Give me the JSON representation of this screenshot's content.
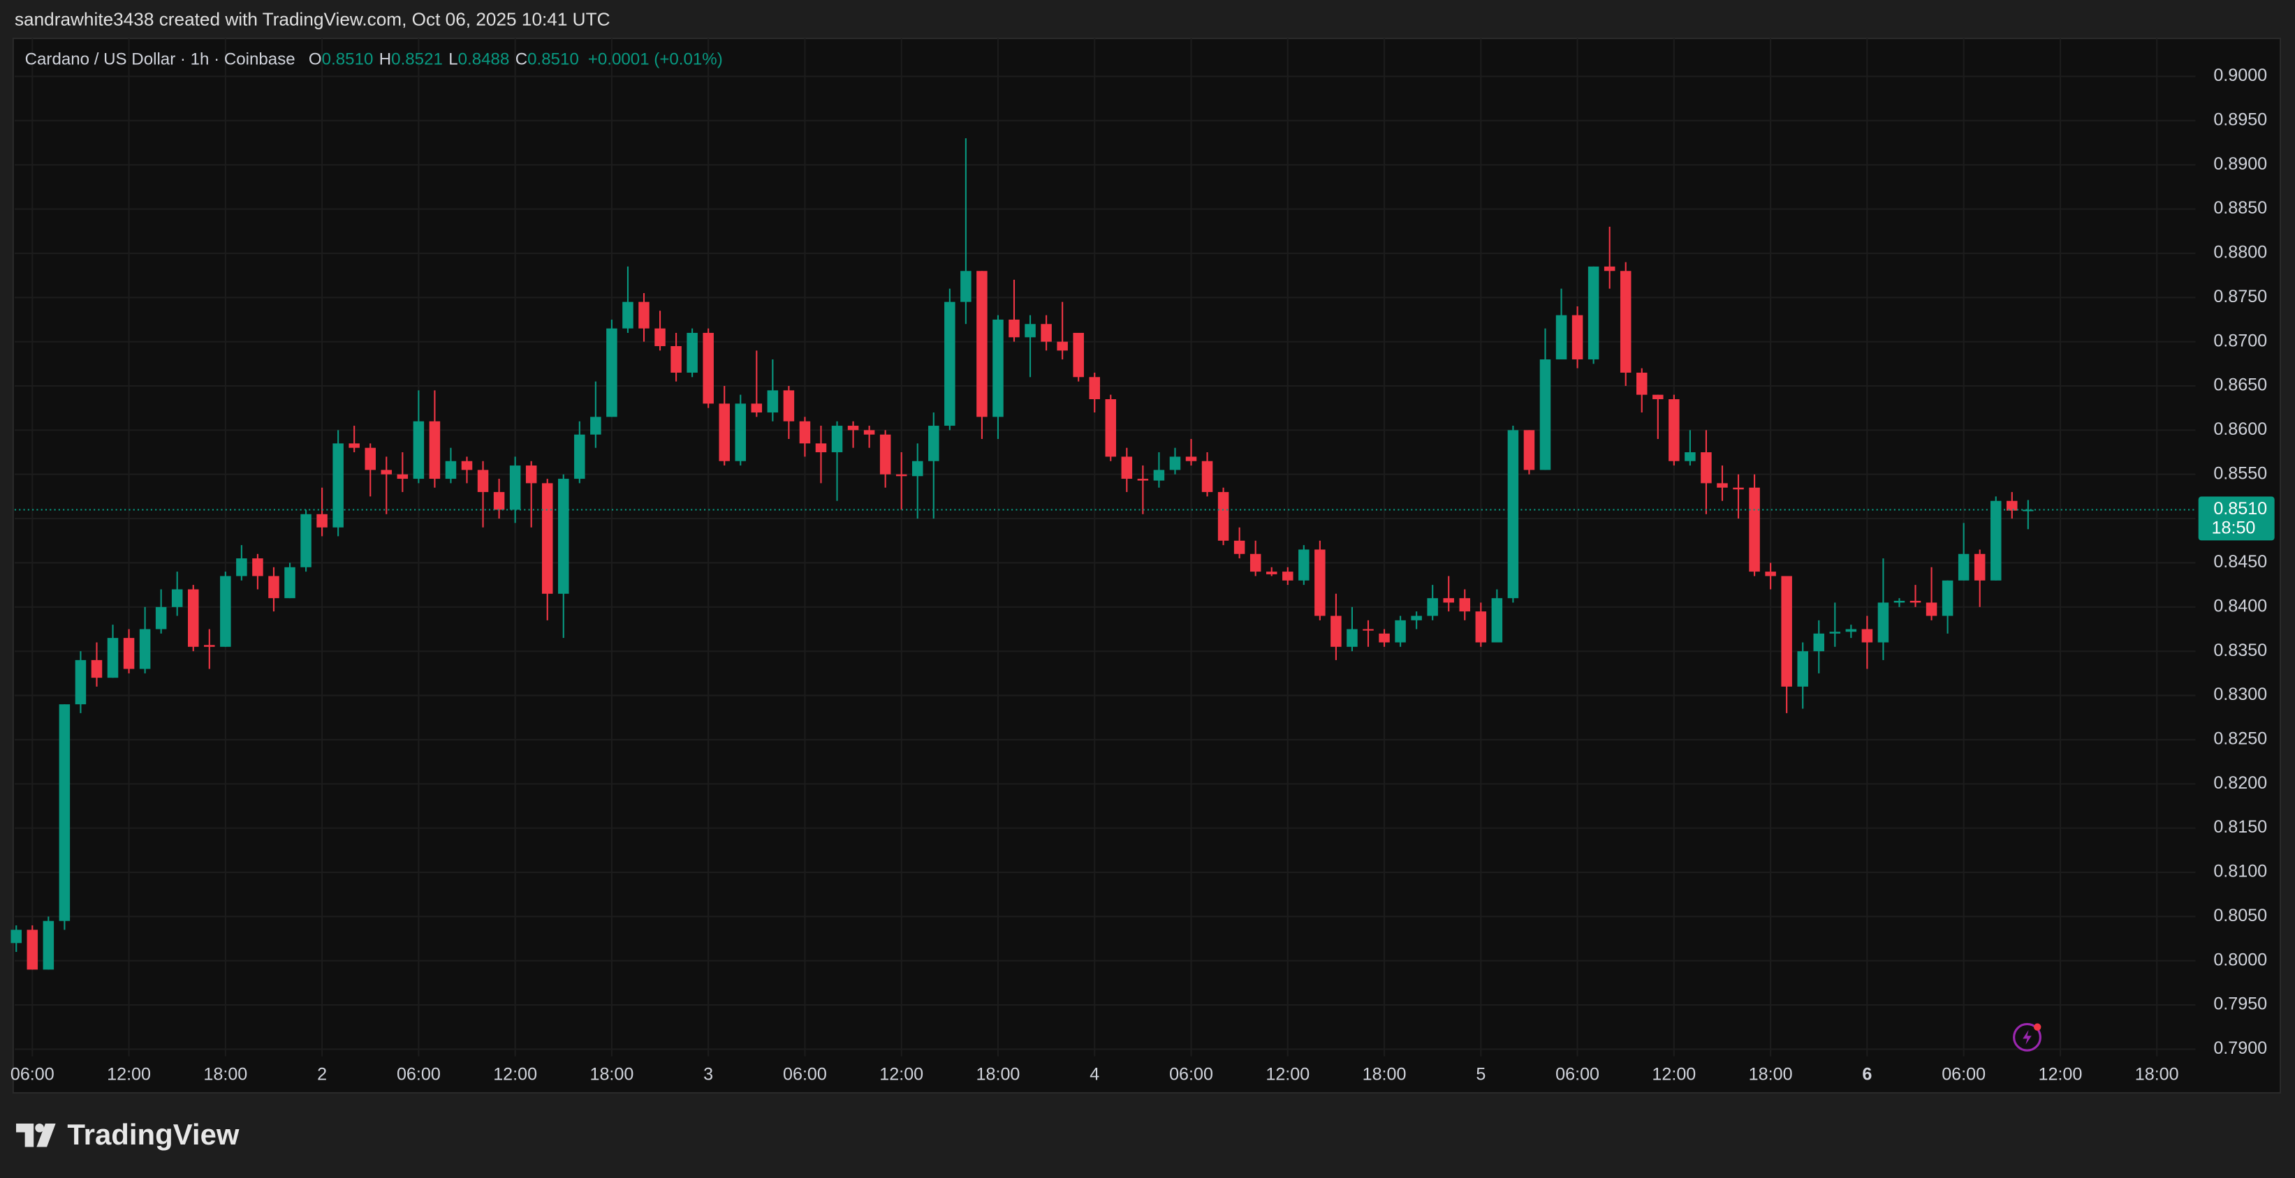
{
  "chart_data": {
    "type": "candlestick",
    "attribution": "sandrawhite3438 created with TradingView.com, Oct 06, 2025 10:41 UTC",
    "symbol": "Cardano / US Dollar · 1h · Coinbase",
    "ohlc_legend": [
      {
        "label": "O",
        "value": "0.8510"
      },
      {
        "label": "H",
        "value": "0.8521"
      },
      {
        "label": "L",
        "value": "0.8488"
      },
      {
        "label": "C",
        "value": "0.8510"
      }
    ],
    "change": "+0.0001 (+0.01%)",
    "brand": "TradingView",
    "up_color": "#089981",
    "down_color": "#f23645",
    "grid": true,
    "last_price": {
      "value": 0.851,
      "label": "0.8510"
    },
    "countdown": "18:50",
    "xlim": [
      -0.1,
      135.4
    ],
    "ylim": [
      0.7892,
      0.9043
    ],
    "xticks": [
      {
        "value": 1,
        "label": "06:00"
      },
      {
        "value": 7,
        "label": "12:00"
      },
      {
        "value": 13,
        "label": "18:00"
      },
      {
        "value": 19,
        "label": "2"
      },
      {
        "value": 25,
        "label": "06:00"
      },
      {
        "value": 31,
        "label": "12:00"
      },
      {
        "value": 37,
        "label": "18:00"
      },
      {
        "value": 43,
        "label": "3"
      },
      {
        "value": 49,
        "label": "06:00"
      },
      {
        "value": 55,
        "label": "12:00"
      },
      {
        "value": 61,
        "label": "18:00"
      },
      {
        "value": 67,
        "label": "4"
      },
      {
        "value": 73,
        "label": "06:00"
      },
      {
        "value": 79,
        "label": "12:00"
      },
      {
        "value": 85,
        "label": "18:00"
      },
      {
        "value": 91,
        "label": "5"
      },
      {
        "value": 97,
        "label": "06:00"
      },
      {
        "value": 103,
        "label": "12:00"
      },
      {
        "value": 109,
        "label": "18:00"
      },
      {
        "value": 115,
        "label": "6"
      },
      {
        "value": 121,
        "label": "06:00"
      },
      {
        "value": 127,
        "label": "12:00"
      },
      {
        "value": 133,
        "label": "18:00"
      }
    ],
    "yticks": [
      {
        "value": 0.79,
        "label": "0.7900"
      },
      {
        "value": 0.795,
        "label": "0.7950"
      },
      {
        "value": 0.8,
        "label": "0.8000"
      },
      {
        "value": 0.805,
        "label": "0.8050"
      },
      {
        "value": 0.81,
        "label": "0.8100"
      },
      {
        "value": 0.815,
        "label": "0.8150"
      },
      {
        "value": 0.82,
        "label": "0.8200"
      },
      {
        "value": 0.825,
        "label": "0.8250"
      },
      {
        "value": 0.83,
        "label": "0.8300"
      },
      {
        "value": 0.835,
        "label": "0.8350"
      },
      {
        "value": 0.84,
        "label": "0.8400"
      },
      {
        "value": 0.845,
        "label": "0.8450"
      },
      {
        "value": 0.85,
        "label": "0.8500"
      },
      {
        "value": 0.855,
        "label": "0.8550"
      },
      {
        "value": 0.86,
        "label": "0.8600"
      },
      {
        "value": 0.865,
        "label": "0.8650"
      },
      {
        "value": 0.87,
        "label": "0.8700"
      },
      {
        "value": 0.875,
        "label": "0.8750"
      },
      {
        "value": 0.88,
        "label": "0.8800"
      },
      {
        "value": 0.885,
        "label": "0.8850"
      },
      {
        "value": 0.89,
        "label": "0.8900"
      },
      {
        "value": 0.895,
        "label": "0.8950"
      },
      {
        "value": 0.9,
        "label": "0.9000"
      }
    ],
    "series": [
      {
        "x": [
          0,
          1,
          2,
          3,
          4,
          5,
          6,
          7,
          8,
          9,
          10,
          11,
          12,
          13,
          14,
          15,
          16,
          17,
          18,
          19,
          20,
          21,
          22,
          23,
          24,
          25,
          26,
          27,
          28,
          29,
          30,
          31,
          32,
          33,
          34,
          35,
          36,
          37,
          38,
          39,
          40,
          41,
          42,
          43,
          44,
          45,
          46,
          47,
          48,
          49,
          50,
          51,
          52,
          53,
          54,
          55,
          56,
          57,
          58,
          59,
          60,
          61,
          62,
          63,
          64,
          65,
          66,
          67,
          68,
          69,
          70,
          71,
          72,
          73,
          74,
          75,
          76,
          77,
          78,
          79,
          80,
          81,
          82,
          83,
          84,
          85,
          86,
          87,
          88,
          89,
          90,
          91,
          92,
          93,
          94,
          95,
          96,
          97,
          98,
          99,
          100,
          101,
          102,
          103,
          104,
          105,
          106,
          107,
          108,
          109,
          110,
          111,
          112,
          113,
          114,
          115,
          116,
          117,
          118,
          119,
          120,
          121,
          122,
          123,
          124,
          125
        ],
        "open": [
          0.802,
          0.8035,
          0.799,
          0.8045,
          0.829,
          0.834,
          0.832,
          0.8365,
          0.833,
          0.8375,
          0.84,
          0.842,
          0.8357,
          0.8355,
          0.8435,
          0.8455,
          0.8435,
          0.841,
          0.8445,
          0.8505,
          0.849,
          0.8585,
          0.858,
          0.8555,
          0.855,
          0.8545,
          0.861,
          0.8545,
          0.8565,
          0.8555,
          0.853,
          0.851,
          0.856,
          0.854,
          0.8415,
          0.8545,
          0.8595,
          0.8615,
          0.8715,
          0.8745,
          0.8715,
          0.8695,
          0.8665,
          0.871,
          0.863,
          0.8565,
          0.863,
          0.862,
          0.8645,
          0.861,
          0.8585,
          0.8575,
          0.8605,
          0.86,
          0.8595,
          0.855,
          0.8548,
          0.8565,
          0.8605,
          0.8745,
          0.878,
          0.8615,
          0.8725,
          0.8705,
          0.872,
          0.87,
          0.871,
          0.866,
          0.8635,
          0.857,
          0.8545,
          0.8543,
          0.8555,
          0.857,
          0.8565,
          0.853,
          0.8475,
          0.846,
          0.844,
          0.844,
          0.843,
          0.8465,
          0.839,
          0.8355,
          0.8375,
          0.837,
          0.836,
          0.8385,
          0.839,
          0.841,
          0.841,
          0.8395,
          0.836,
          0.841,
          0.86,
          0.8555,
          0.868,
          0.873,
          0.868,
          0.8785,
          0.878,
          0.8665,
          0.864,
          0.8635,
          0.8565,
          0.8575,
          0.854,
          0.8535,
          0.8535,
          0.844,
          0.8435,
          0.831,
          0.835,
          0.837,
          0.8372,
          0.8375,
          0.836,
          0.8405,
          0.8407,
          0.8405,
          0.839,
          0.843,
          0.846,
          0.843,
          0.852,
          0.851
        ],
        "high": [
          0.804,
          0.804,
          0.805,
          0.829,
          0.835,
          0.836,
          0.838,
          0.8375,
          0.84,
          0.842,
          0.844,
          0.8425,
          0.8375,
          0.844,
          0.847,
          0.846,
          0.8445,
          0.845,
          0.851,
          0.8535,
          0.86,
          0.8605,
          0.8585,
          0.857,
          0.8575,
          0.8645,
          0.8645,
          0.858,
          0.857,
          0.8565,
          0.8545,
          0.857,
          0.8565,
          0.8545,
          0.855,
          0.861,
          0.8655,
          0.8725,
          0.8785,
          0.8755,
          0.8735,
          0.871,
          0.8715,
          0.8715,
          0.865,
          0.864,
          0.869,
          0.868,
          0.865,
          0.8615,
          0.8605,
          0.861,
          0.861,
          0.8605,
          0.86,
          0.8575,
          0.8585,
          0.862,
          0.876,
          0.893,
          0.878,
          0.873,
          0.877,
          0.873,
          0.873,
          0.8745,
          0.871,
          0.8665,
          0.864,
          0.858,
          0.856,
          0.8575,
          0.858,
          0.859,
          0.8575,
          0.8535,
          0.849,
          0.8475,
          0.8445,
          0.8445,
          0.847,
          0.8475,
          0.8415,
          0.84,
          0.8385,
          0.8375,
          0.839,
          0.8395,
          0.8425,
          0.8435,
          0.842,
          0.8405,
          0.842,
          0.8605,
          0.86,
          0.8715,
          0.876,
          0.874,
          0.8785,
          0.883,
          0.879,
          0.867,
          0.864,
          0.864,
          0.86,
          0.86,
          0.856,
          0.855,
          0.855,
          0.845,
          0.8435,
          0.836,
          0.8385,
          0.8405,
          0.838,
          0.839,
          0.8455,
          0.841,
          0.8425,
          0.8445,
          0.843,
          0.8495,
          0.8465,
          0.8525,
          0.853,
          0.8521
        ],
        "low": [
          0.801,
          0.799,
          0.799,
          0.8035,
          0.828,
          0.831,
          0.832,
          0.8325,
          0.8325,
          0.837,
          0.839,
          0.835,
          0.833,
          0.8355,
          0.843,
          0.842,
          0.8395,
          0.841,
          0.844,
          0.848,
          0.848,
          0.8575,
          0.8525,
          0.8505,
          0.853,
          0.854,
          0.8535,
          0.854,
          0.854,
          0.849,
          0.85,
          0.8495,
          0.849,
          0.8385,
          0.8365,
          0.854,
          0.858,
          0.8615,
          0.871,
          0.87,
          0.869,
          0.8655,
          0.866,
          0.8625,
          0.856,
          0.856,
          0.8615,
          0.861,
          0.859,
          0.857,
          0.854,
          0.852,
          0.858,
          0.858,
          0.8535,
          0.851,
          0.85,
          0.85,
          0.86,
          0.872,
          0.859,
          0.859,
          0.87,
          0.866,
          0.869,
          0.868,
          0.8655,
          0.862,
          0.8565,
          0.853,
          0.8505,
          0.8535,
          0.855,
          0.856,
          0.8525,
          0.847,
          0.8455,
          0.8435,
          0.8435,
          0.8425,
          0.8425,
          0.8385,
          0.834,
          0.835,
          0.8355,
          0.8355,
          0.8355,
          0.8375,
          0.8385,
          0.8395,
          0.8385,
          0.8355,
          0.836,
          0.8405,
          0.855,
          0.8555,
          0.868,
          0.867,
          0.8675,
          0.876,
          0.865,
          0.862,
          0.859,
          0.856,
          0.856,
          0.8505,
          0.852,
          0.85,
          0.8435,
          0.842,
          0.828,
          0.8285,
          0.8325,
          0.8355,
          0.8365,
          0.833,
          0.834,
          0.84,
          0.84,
          0.8385,
          0.837,
          0.843,
          0.84,
          0.843,
          0.85,
          0.8488
        ],
        "close": [
          0.8035,
          0.799,
          0.8045,
          0.829,
          0.834,
          0.832,
          0.8365,
          0.833,
          0.8375,
          0.84,
          0.842,
          0.8355,
          0.8355,
          0.8435,
          0.8455,
          0.8435,
          0.841,
          0.8445,
          0.8505,
          0.849,
          0.8585,
          0.858,
          0.8555,
          0.855,
          0.8545,
          0.861,
          0.8545,
          0.8565,
          0.8555,
          0.853,
          0.851,
          0.856,
          0.854,
          0.8415,
          0.8545,
          0.8595,
          0.8615,
          0.8715,
          0.8745,
          0.8715,
          0.8695,
          0.8665,
          0.871,
          0.863,
          0.8565,
          0.863,
          0.862,
          0.8645,
          0.861,
          0.8585,
          0.8575,
          0.8605,
          0.86,
          0.8595,
          0.855,
          0.8548,
          0.8565,
          0.8605,
          0.8745,
          0.878,
          0.8615,
          0.8725,
          0.8705,
          0.872,
          0.87,
          0.869,
          0.866,
          0.8635,
          0.857,
          0.8545,
          0.8543,
          0.8555,
          0.857,
          0.8565,
          0.853,
          0.8475,
          0.846,
          0.844,
          0.8437,
          0.843,
          0.8465,
          0.839,
          0.8355,
          0.8375,
          0.8374,
          0.836,
          0.8385,
          0.839,
          0.841,
          0.8405,
          0.8395,
          0.836,
          0.841,
          0.86,
          0.8555,
          0.868,
          0.873,
          0.868,
          0.8785,
          0.878,
          0.8665,
          0.864,
          0.8635,
          0.8565,
          0.8575,
          0.854,
          0.8535,
          0.8533,
          0.844,
          0.8435,
          0.831,
          0.835,
          0.837,
          0.8372,
          0.8375,
          0.836,
          0.8405,
          0.8407,
          0.8405,
          0.839,
          0.843,
          0.846,
          0.843,
          0.852,
          0.8509,
          0.851
        ]
      }
    ]
  }
}
